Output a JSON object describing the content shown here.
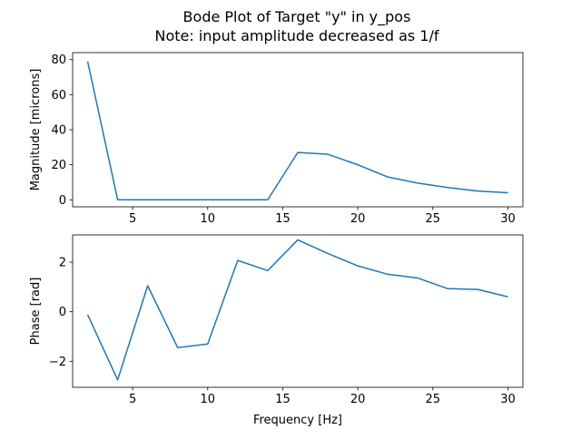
{
  "figure": {
    "title_line1": "Bode Plot of Target \"y\" in y_pos",
    "title_line2": "Note: input amplitude decreased as 1/f"
  },
  "colors": {
    "series": "#1f77b4",
    "axes": "#000000",
    "background": "#ffffff"
  },
  "chart_data": [
    {
      "type": "line",
      "title": "Bode Plot of Target \"y\" in y_pos\nNote: input amplitude decreased as 1/f",
      "xlabel": "",
      "ylabel": "Magnitude [microns]",
      "xlim": [
        1.0,
        31.0
      ],
      "ylim": [
        -4,
        84
      ],
      "xticks": [
        5,
        10,
        15,
        20,
        25,
        30
      ],
      "yticks": [
        0,
        20,
        40,
        60,
        80
      ],
      "grid": false,
      "x": [
        2,
        4,
        6,
        8,
        10,
        12,
        14,
        16,
        18,
        20,
        22,
        24,
        26,
        28,
        30
      ],
      "y": [
        79,
        0,
        0,
        0,
        0,
        0,
        0,
        27,
        26,
        20,
        13,
        9.5,
        7,
        5,
        4
      ]
    },
    {
      "type": "line",
      "xlabel": "Frequency [Hz]",
      "ylabel": "Phase [rad]",
      "xlim": [
        1.0,
        31.0
      ],
      "ylim": [
        -3.05,
        3.1
      ],
      "xticks": [
        5,
        10,
        15,
        20,
        25,
        30
      ],
      "yticks": [
        -2,
        0,
        2
      ],
      "grid": false,
      "x": [
        2,
        4,
        6,
        8,
        10,
        12,
        14,
        16,
        18,
        20,
        22,
        24,
        26,
        28,
        30
      ],
      "y": [
        -0.12,
        -2.75,
        1.05,
        -1.45,
        -1.3,
        2.07,
        1.66,
        2.9,
        2.35,
        1.85,
        1.51,
        1.36,
        0.93,
        0.9,
        0.6
      ]
    }
  ]
}
